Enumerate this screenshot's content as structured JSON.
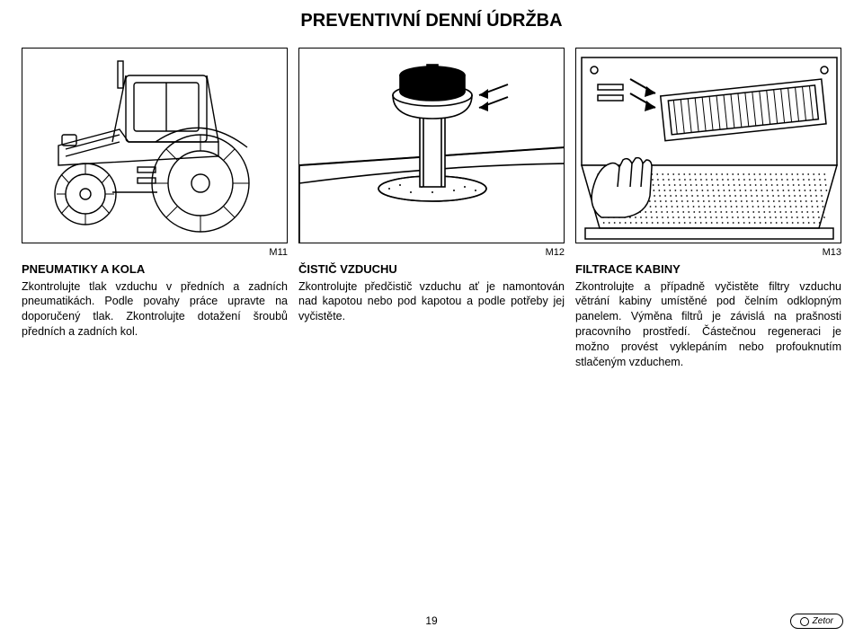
{
  "page": {
    "title": "PREVENTIVNÍ DENNÍ ÚDRŽBA",
    "number": "19",
    "brand": "Zetor"
  },
  "figures": {
    "labels": [
      "M11",
      "M12",
      "M13"
    ],
    "illustrations": {
      "f1_alt": "Traktor – pohled z boku, pneumatiky a kola",
      "f2_alt": "Předčistič vzduchu na kapotě",
      "f3_alt": "Filtr kabiny pod odklopným panelem",
      "colors": {
        "stroke": "#000000",
        "fill": "#ffffff",
        "hatch": "#000000"
      }
    }
  },
  "columns": [
    {
      "heading": "PNEUMATIKY A KOLA",
      "body": "Zkontrolujte tlak vzduchu v předních a zadních pneumatikách. Podle povahy práce upravte na doporučený tlak. Zkontrolujte dotažení šroubů předních a zadních kol."
    },
    {
      "heading": "ČISTIČ VZDUCHU",
      "body": "Zkontrolujte předčistič vzduchu ať je namontován nad kapotou nebo pod kapotou a podle potřeby jej vyčistěte."
    },
    {
      "heading": "FILTRACE KABINY",
      "body": "Zkontrolujte a případně vyčistěte filtry vzduchu větrání kabiny umístěné pod čelním odklopným panelem. Výměna filtrů je závislá na prašnosti pracovního prostředí. Částečnou regeneraci je možno provést vyklepáním nebo profouknutím stlačeným vzduchem."
    }
  ]
}
